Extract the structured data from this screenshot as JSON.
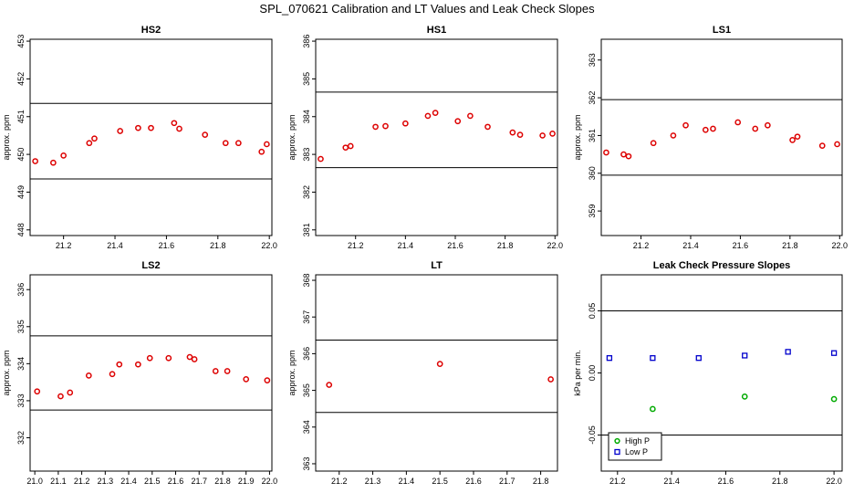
{
  "figure": {
    "title": "SPL_070621  Calibration and LT Values and Leak Check Slopes"
  },
  "chart_data": [
    {
      "type": "scatter",
      "title": "HS2",
      "ylabel": "approx. ppm",
      "xlim": [
        21.07,
        22.01
      ],
      "ylim": [
        447.85,
        453.05
      ],
      "xticks": [
        "21.2",
        "21.4",
        "21.6",
        "21.8",
        "22.0"
      ],
      "yticks": [
        "448",
        "449",
        "450",
        "451",
        "452",
        "453"
      ],
      "hlines": [
        449.35,
        451.35
      ],
      "series": [
        {
          "color": "#dd0000",
          "x": [
            21.09,
            21.16,
            21.2,
            21.3,
            21.32,
            21.42,
            21.49,
            21.54,
            21.63,
            21.65,
            21.75,
            21.83,
            21.88,
            21.97,
            21.99
          ],
          "y": [
            449.82,
            449.78,
            449.97,
            450.3,
            450.42,
            450.62,
            450.7,
            450.7,
            450.83,
            450.68,
            450.52,
            450.3,
            450.3,
            450.07,
            450.27
          ]
        }
      ]
    },
    {
      "type": "scatter",
      "title": "HS1",
      "ylabel": "approx. ppm",
      "xlim": [
        21.04,
        22.01
      ],
      "ylim": [
        380.85,
        386.05
      ],
      "xticks": [
        "21.2",
        "21.4",
        "21.6",
        "21.8",
        "22.0"
      ],
      "yticks": [
        "381",
        "382",
        "383",
        "384",
        "385",
        "386"
      ],
      "hlines": [
        382.65,
        384.65
      ],
      "series": [
        {
          "color": "#dd0000",
          "x": [
            21.06,
            21.16,
            21.18,
            21.28,
            21.32,
            21.4,
            21.49,
            21.52,
            21.61,
            21.66,
            21.73,
            21.83,
            21.86,
            21.95,
            21.99
          ],
          "y": [
            382.88,
            383.18,
            383.22,
            383.73,
            383.75,
            383.82,
            384.02,
            384.1,
            383.88,
            384.02,
            383.73,
            383.58,
            383.52,
            383.5,
            383.55
          ]
        }
      ]
    },
    {
      "type": "scatter",
      "title": "LS1",
      "ylabel": "approx. ppm",
      "xlim": [
        21.04,
        22.01
      ],
      "ylim": [
        358.35,
        363.55
      ],
      "xticks": [
        "21.2",
        "21.4",
        "21.6",
        "21.8",
        "22.0"
      ],
      "yticks": [
        "359",
        "360",
        "361",
        "362",
        "363"
      ],
      "hlines": [
        359.95,
        361.95
      ],
      "series": [
        {
          "color": "#dd0000",
          "x": [
            21.06,
            21.13,
            21.15,
            21.25,
            21.33,
            21.38,
            21.46,
            21.49,
            21.59,
            21.66,
            21.71,
            21.81,
            21.83,
            21.93,
            21.99
          ],
          "y": [
            360.55,
            360.5,
            360.45,
            360.8,
            361.0,
            361.27,
            361.15,
            361.18,
            361.35,
            361.18,
            361.27,
            360.88,
            360.97,
            360.73,
            360.77
          ]
        }
      ]
    },
    {
      "type": "scatter",
      "title": "LS2",
      "ylabel": "approx. ppm",
      "xlim": [
        20.98,
        22.01
      ],
      "ylim": [
        331.1,
        336.4
      ],
      "xticks": [
        "21.0",
        "21.1",
        "21.2",
        "21.3",
        "21.4",
        "21.5",
        "21.6",
        "21.7",
        "21.8",
        "21.9",
        "22.0"
      ],
      "yticks": [
        "332",
        "333",
        "334",
        "335",
        "336"
      ],
      "hlines": [
        332.75,
        334.75
      ],
      "series": [
        {
          "color": "#dd0000",
          "x": [
            21.01,
            21.11,
            21.15,
            21.23,
            21.33,
            21.36,
            21.44,
            21.49,
            21.57,
            21.66,
            21.68,
            21.77,
            21.82,
            21.9,
            21.99
          ],
          "y": [
            333.25,
            333.12,
            333.22,
            333.68,
            333.72,
            333.98,
            333.98,
            334.15,
            334.15,
            334.18,
            334.12,
            333.8,
            333.8,
            333.58,
            333.55
          ]
        }
      ]
    },
    {
      "type": "scatter",
      "title": "LT",
      "ylabel": "approx. ppm",
      "xlim": [
        21.13,
        21.85
      ],
      "ylim": [
        362.8,
        368.15
      ],
      "xticks": [
        "21.2",
        "21.3",
        "21.4",
        "21.5",
        "21.6",
        "21.7",
        "21.8"
      ],
      "yticks": [
        "363",
        "364",
        "365",
        "366",
        "367",
        "368"
      ],
      "hlines": [
        364.4,
        366.37
      ],
      "series": [
        {
          "color": "#dd0000",
          "x": [
            21.17,
            21.5,
            21.83
          ],
          "y": [
            365.15,
            365.72,
            365.3
          ]
        }
      ]
    },
    {
      "type": "scatter",
      "title": "Leak Check Pressure Slopes",
      "ylabel": "kPa per min.",
      "xlim": [
        21.14,
        22.03
      ],
      "ylim": [
        -0.079,
        0.079
      ],
      "xticks": [
        "21.2",
        "21.4",
        "21.6",
        "21.8",
        "22.0"
      ],
      "yticks": [
        "-0.05",
        "0.00",
        "0.05"
      ],
      "hlines": [
        -0.05,
        0.05
      ],
      "legend": {
        "placement": "bottom-left"
      },
      "series": [
        {
          "name": "High P",
          "color": "#00aa00",
          "x": [
            21.33,
            21.67,
            22.0
          ],
          "y": [
            -0.029,
            -0.019,
            -0.021
          ]
        },
        {
          "name": "Low P",
          "color": "#0000cc",
          "x": [
            21.17,
            21.33,
            21.5,
            21.67,
            21.83,
            22.0
          ],
          "y": [
            0.012,
            0.012,
            0.012,
            0.014,
            0.017,
            0.016
          ]
        }
      ]
    }
  ]
}
